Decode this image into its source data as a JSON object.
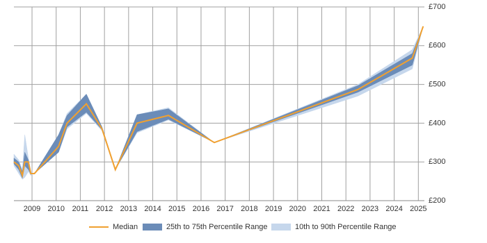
{
  "chart_data": {
    "type": "line",
    "x": [
      2008.25,
      2008.45,
      2008.6,
      2008.7,
      2008.85,
      2008.95,
      2009.1,
      2010.1,
      2010.45,
      2011.25,
      2011.9,
      2012.45,
      2013.35,
      2014.65,
      2016.55,
      2022.5,
      2024.75,
      2025.2
    ],
    "series": [
      {
        "name": "10th to 90th Percentile Range",
        "color": "#c6d7ec",
        "low": [
          290,
          270,
          255,
          260,
          275,
          265,
          270,
          325,
          385,
          425,
          380,
          280,
          375,
          408,
          350,
          470,
          540,
          650
        ],
        "high": [
          320,
          305,
          280,
          370,
          310,
          275,
          270,
          370,
          425,
          475,
          390,
          280,
          422,
          440,
          350,
          500,
          590,
          650
        ]
      },
      {
        "name": "25th to 75th Percentile Range",
        "color": "#6b8cb8",
        "low": [
          295,
          280,
          258,
          290,
          280,
          268,
          270,
          325,
          390,
          428,
          383,
          280,
          378,
          410,
          350,
          480,
          550,
          650
        ],
        "high": [
          310,
          300,
          275,
          325,
          305,
          272,
          270,
          370,
          420,
          475,
          390,
          280,
          422,
          437,
          350,
          497,
          580,
          650
        ]
      },
      {
        "name": "Median",
        "color": "#f0a030",
        "values": [
          300,
          290,
          265,
          300,
          300,
          270,
          270,
          340,
          400,
          450,
          385,
          280,
          400,
          420,
          350,
          487,
          568,
          650
        ]
      }
    ],
    "xlim": [
      2008.25,
      2025.25
    ],
    "xticks": [
      2009,
      2010,
      2011,
      2012,
      2013,
      2014,
      2015,
      2016,
      2017,
      2018,
      2019,
      2020,
      2021,
      2022,
      2023,
      2024,
      2025
    ],
    "ylim": [
      200,
      700
    ],
    "yticks": [
      {
        "value": 200,
        "label": "£200"
      },
      {
        "value": 300,
        "label": "£300"
      },
      {
        "value": 400,
        "label": "£400"
      },
      {
        "value": 500,
        "label": "£500"
      },
      {
        "value": 600,
        "label": "£600"
      },
      {
        "value": 700,
        "label": "£700"
      }
    ],
    "grid": true
  }
}
